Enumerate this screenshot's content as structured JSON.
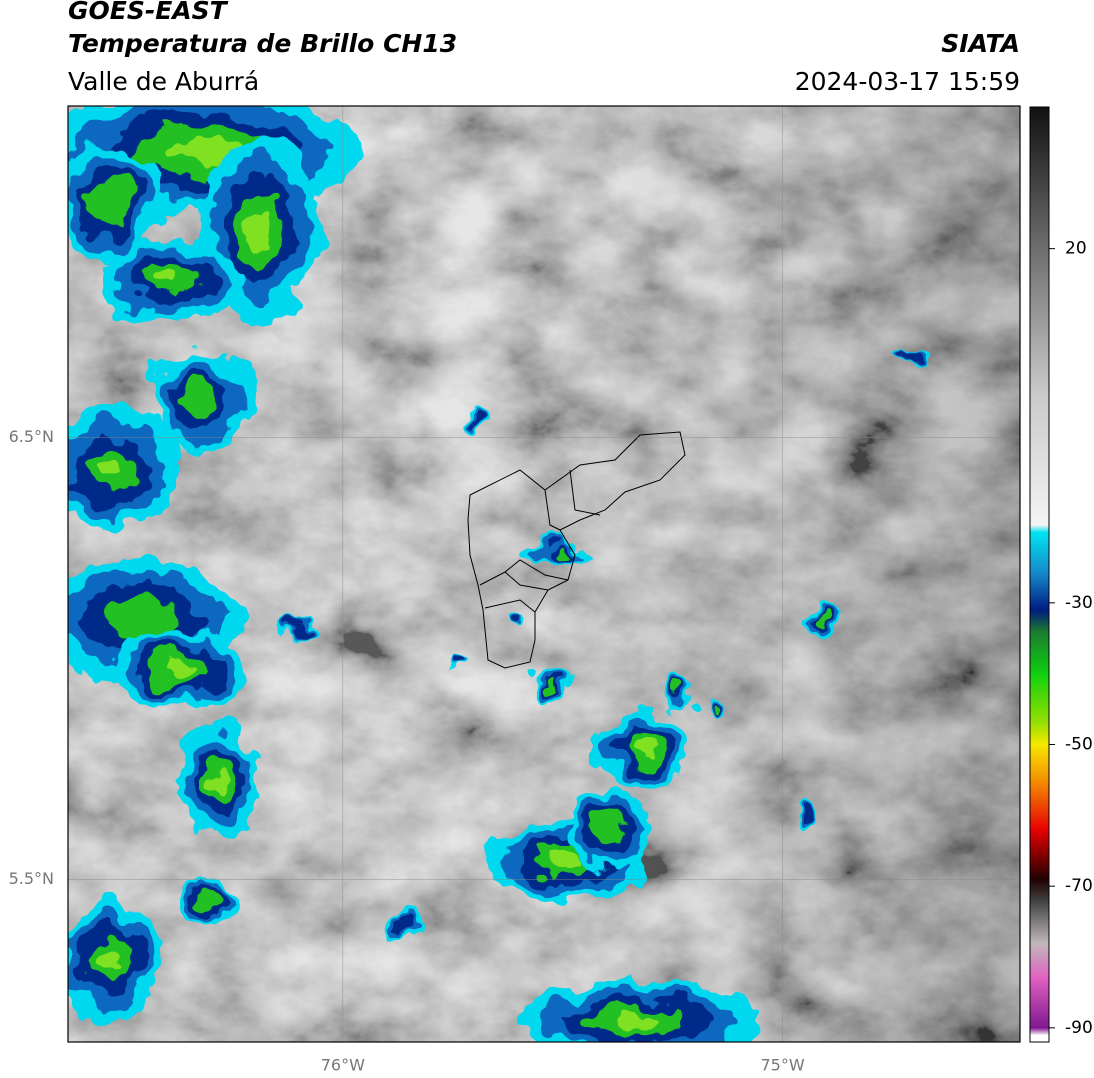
{
  "chart_data": {
    "type": "map",
    "title": "GOES-EAST",
    "subtitle": "Temperatura de Brillo CH13",
    "region": "Valle de Aburrá",
    "source": "SIATA",
    "datetime": "2024-03-17 15:59",
    "xlim": [
      -76.625,
      -74.46
    ],
    "ylim": [
      5.133,
      7.25
    ],
    "xticks": [
      {
        "value": -76,
        "label": "76°W"
      },
      {
        "value": -75,
        "label": "75°W"
      }
    ],
    "yticks": [
      {
        "value": 6.5,
        "label": "6.5°N"
      },
      {
        "value": 5.5,
        "label": "5.5°N"
      }
    ],
    "grid": true,
    "colorbar": {
      "lim": [
        -92,
        40
      ],
      "ticks": [
        20,
        -30,
        -50,
        -70,
        -90
      ],
      "stops": [
        {
          "value": 40,
          "color": "#111111"
        },
        {
          "value": 20,
          "color": "#6e6e6e"
        },
        {
          "value": 0,
          "color": "#c8c8c8"
        },
        {
          "value": -19,
          "color": "#f4f4f4"
        },
        {
          "value": -20,
          "color": "#00e5f0"
        },
        {
          "value": -26,
          "color": "#1585c8"
        },
        {
          "value": -31,
          "color": "#001a80"
        },
        {
          "value": -34,
          "color": "#1a7a30"
        },
        {
          "value": -40,
          "color": "#10d010"
        },
        {
          "value": -47,
          "color": "#9ae000"
        },
        {
          "value": -50,
          "color": "#f5e800"
        },
        {
          "value": -55,
          "color": "#f59000"
        },
        {
          "value": -62,
          "color": "#e80000"
        },
        {
          "value": -69,
          "color": "#200000"
        },
        {
          "value": -72,
          "color": "#404040"
        },
        {
          "value": -78,
          "color": "#c0b8bc"
        },
        {
          "value": -83,
          "color": "#e060c0"
        },
        {
          "value": -90,
          "color": "#801890"
        },
        {
          "value": -91,
          "color": "#ffffff"
        },
        {
          "value": -92,
          "color": "#ffffff"
        }
      ]
    }
  }
}
